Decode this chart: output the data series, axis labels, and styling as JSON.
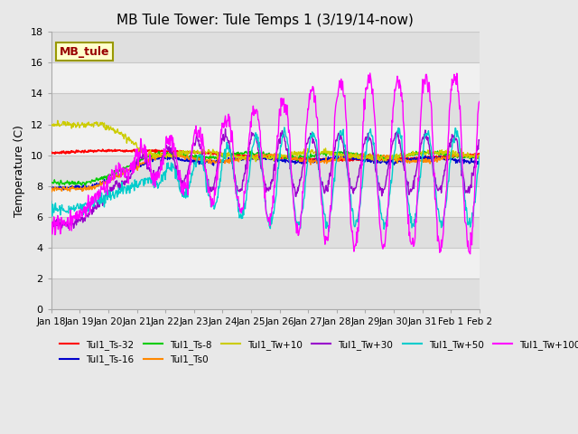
{
  "title": "MB Tule Tower: Tule Temps 1 (3/19/14-now)",
  "ylabel": "Temperature (C)",
  "ylim": [
    0,
    18
  ],
  "yticks": [
    0,
    2,
    4,
    6,
    8,
    10,
    12,
    14,
    16,
    18
  ],
  "xlabel_dates": [
    "Jan 18",
    "Jan 19",
    "Jan 20",
    "Jan 21",
    "Jan 22",
    "Jan 23",
    "Jan 24",
    "Jan 25",
    "Jan 26",
    "Jan 27",
    "Jan 28",
    "Jan 29",
    "Jan 30",
    "Jan 31",
    "Feb 1",
    "Feb 2"
  ],
  "n_days": 15,
  "watermark_text": "MB_tule",
  "legend_entries": [
    {
      "label": "Tul1_Ts-32",
      "color": "#ff0000"
    },
    {
      "label": "Tul1_Ts-16",
      "color": "#0000cc"
    },
    {
      "label": "Tul1_Ts-8",
      "color": "#00cc00"
    },
    {
      "label": "Tul1_Ts0",
      "color": "#ff8800"
    },
    {
      "label": "Tul1_Tw+10",
      "color": "#cccc00"
    },
    {
      "label": "Tul1_Tw+30",
      "color": "#9900cc"
    },
    {
      "label": "Tul1_Tw+50",
      "color": "#00cccc"
    },
    {
      "label": "Tul1_Tw+100",
      "color": "#ff00ff"
    }
  ],
  "bg_color": "#e8e8e8",
  "plot_bg_color": "#f0f0f0",
  "band_color": "#d8d8d8",
  "grid_color": "#c8c8c8"
}
